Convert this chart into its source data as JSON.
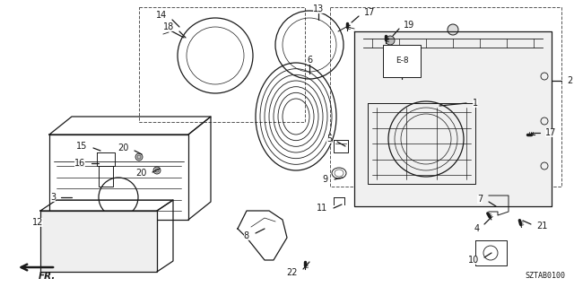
{
  "bg_color": "#ffffff",
  "line_color": "#1a1a1a",
  "diagram_code": "SZTAB0100",
  "figsize": [
    6.4,
    3.2
  ],
  "dpi": 100
}
